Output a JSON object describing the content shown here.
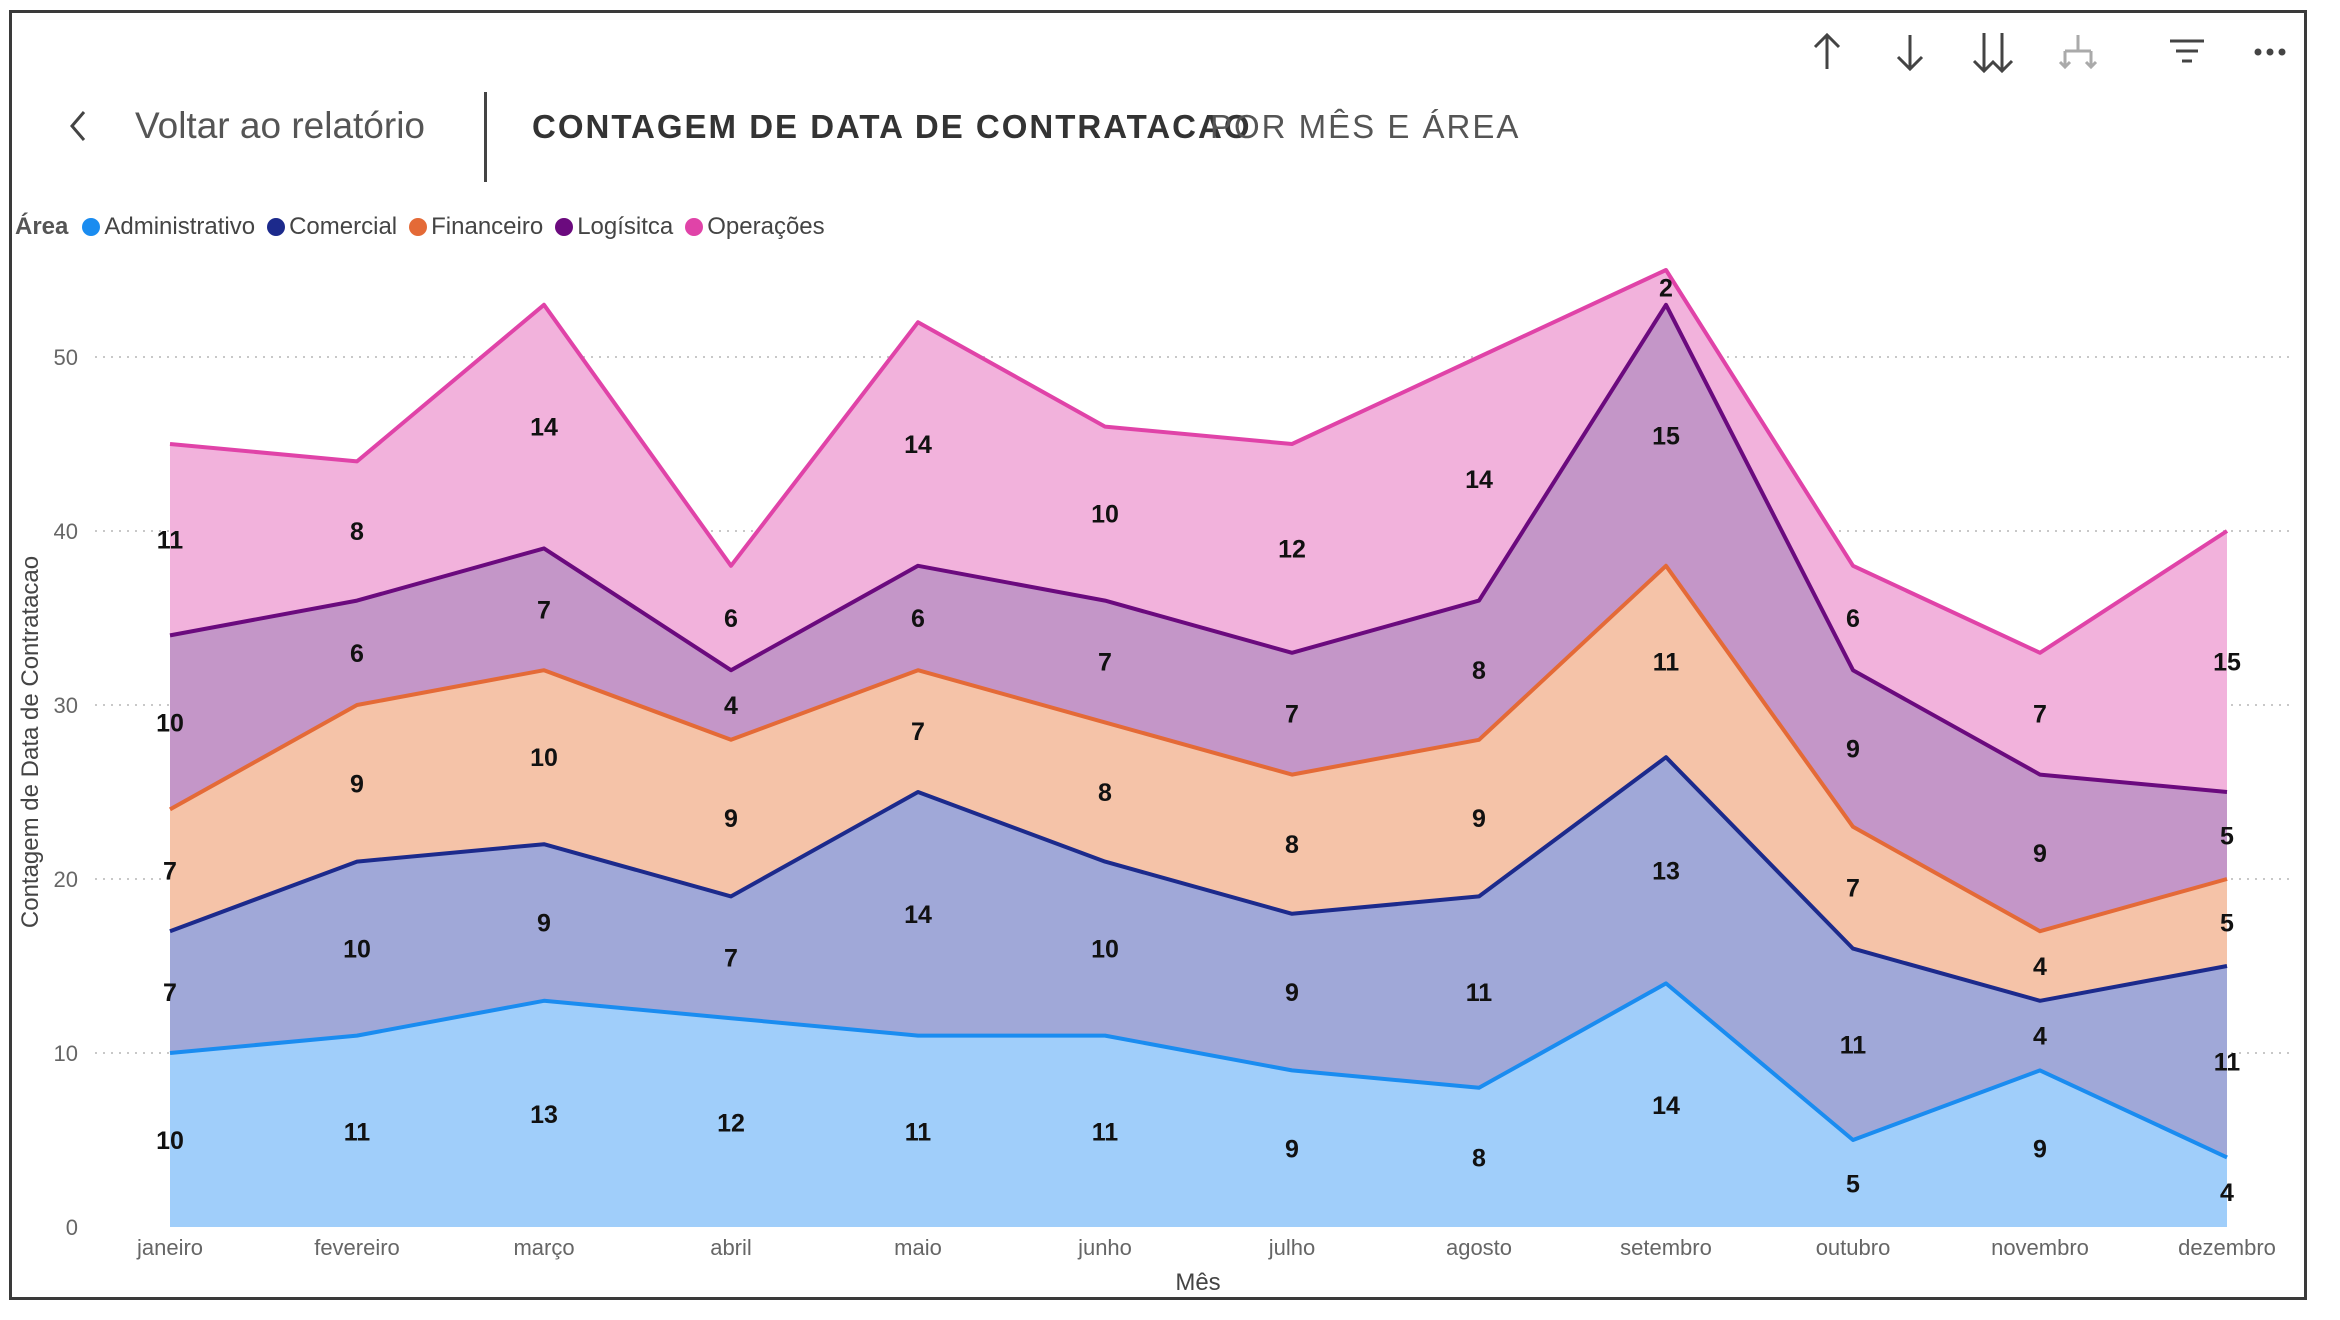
{
  "header": {
    "back_label": "Voltar ao relatório",
    "title": "CONTAGEM DE DATA DE CONTRATACAO",
    "subtitle": "POR MÊS E ÁREA"
  },
  "toolbar": {
    "icons": [
      "arrow-up-icon",
      "arrow-down-icon",
      "double-arrow-down-icon",
      "hierarchy-expand-icon",
      "filter-icon",
      "more-options-icon"
    ]
  },
  "legend": {
    "title": "Área",
    "items": [
      "Administrativo",
      "Comercial",
      "Financeiro",
      "Logísitca",
      "Operações"
    ]
  },
  "chart_data": {
    "type": "area",
    "stacked": true,
    "categories": [
      "janeiro",
      "fevereiro",
      "março",
      "abril",
      "maio",
      "junho",
      "julho",
      "agosto",
      "setembro",
      "outubro",
      "novembro",
      "dezembro"
    ],
    "series": [
      {
        "name": "Administrativo",
        "values": [
          10,
          11,
          13,
          12,
          11,
          11,
          9,
          8,
          14,
          5,
          9,
          4
        ],
        "line_color": "#1a8cf0",
        "fill_color": "#a0cefa"
      },
      {
        "name": "Comercial",
        "values": [
          7,
          10,
          9,
          7,
          14,
          10,
          9,
          11,
          13,
          11,
          4,
          11
        ],
        "line_color": "#1c2a8c",
        "fill_color": "#a0a8d8"
      },
      {
        "name": "Financeiro",
        "values": [
          7,
          9,
          10,
          9,
          7,
          8,
          8,
          9,
          11,
          7,
          4,
          5
        ],
        "line_color": "#e46a37",
        "fill_color": "#f5c3a8"
      },
      {
        "name": "Logísitca",
        "values": [
          10,
          6,
          7,
          4,
          6,
          7,
          7,
          8,
          15,
          9,
          9,
          5
        ],
        "line_color": "#6b0a7e",
        "fill_color": "#c496c8"
      },
      {
        "name": "Operações",
        "values": [
          11,
          8,
          14,
          6,
          14,
          10,
          12,
          14,
          2,
          6,
          7,
          15
        ],
        "line_color": "#e043a8",
        "fill_color": "#f2b2dc"
      }
    ],
    "xlabel": "Mês",
    "ylabel": "Contagem de Data de Contratacao",
    "ylim": [
      0,
      55
    ],
    "yticks": [
      0,
      10,
      20,
      30,
      40,
      50
    ],
    "grid": true,
    "legend_position": "top-left"
  }
}
